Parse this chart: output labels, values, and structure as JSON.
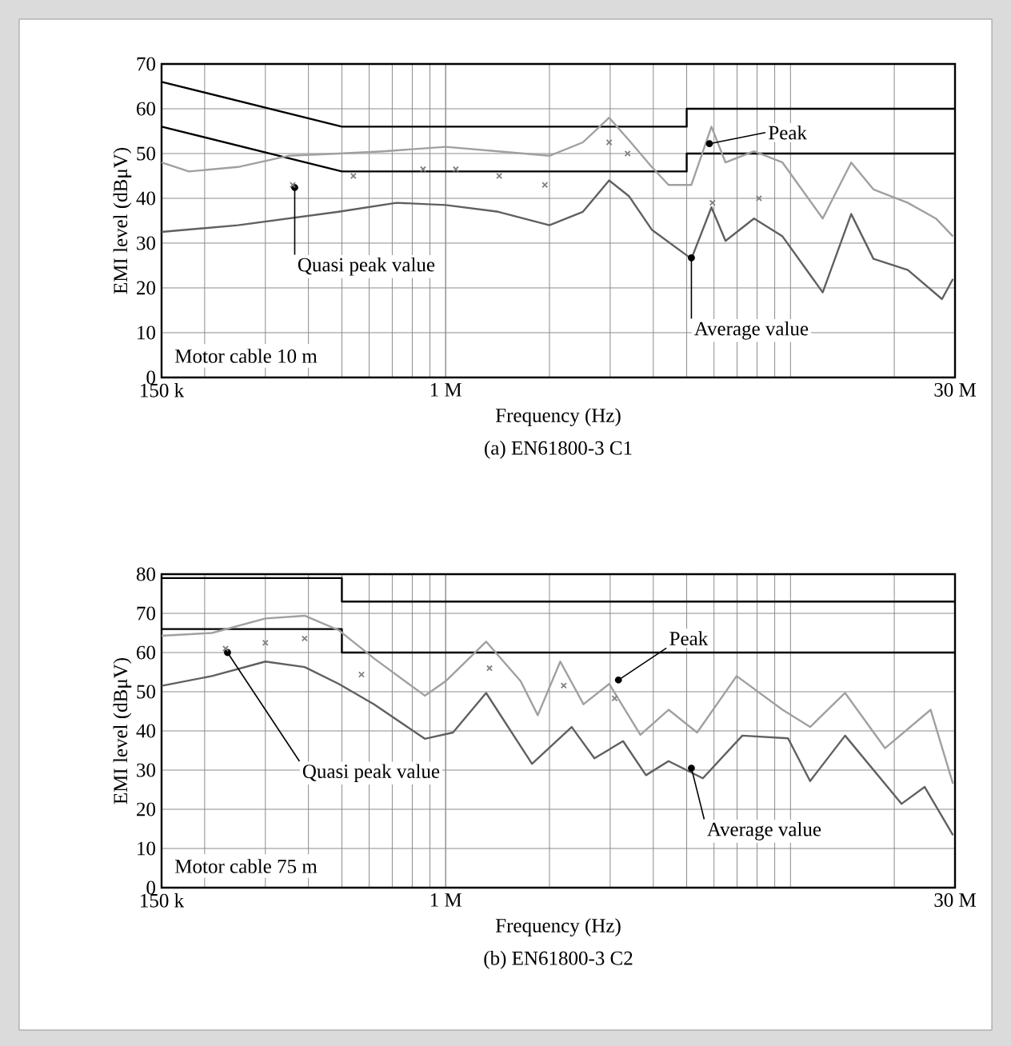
{
  "chart_data": [
    {
      "type": "line",
      "title": "(a) EN61800-3 C1",
      "xlabel": "Frequency (Hz)",
      "ylabel": "EMI level (dBμV)",
      "log": "x",
      "grid": true,
      "xlim": [
        0.15,
        30
      ],
      "ylim": [
        0,
        70
      ],
      "xticks": [
        {
          "value": 0.15,
          "label": "150 k"
        },
        {
          "value": 1,
          "label": "1 M"
        },
        {
          "value": 30,
          "label": "30 M"
        }
      ],
      "yticks": [
        0,
        10,
        20,
        30,
        40,
        50,
        60,
        70
      ],
      "series": [
        {
          "color": "#000000",
          "x": [
            0.15,
            0.5,
            5,
            5,
            30
          ],
          "values": [
            66,
            56,
            56,
            60,
            60
          ]
        },
        {
          "color": "#000000",
          "x": [
            0.15,
            0.5,
            5,
            5,
            30
          ],
          "values": [
            56,
            46,
            46,
            50,
            50
          ]
        },
        {
          "color": "#a0a0a0",
          "x": [
            0.15,
            0.18,
            0.25,
            0.35,
            0.49,
            0.66,
            1,
            1.42,
            2,
            2.5,
            2.98,
            3.4,
            3.96,
            4.43,
            5.16,
            5.9,
            6.48,
            7.84,
            9.48,
            12.4,
            15,
            17.4,
            21.9,
            26.4,
            29.6
          ],
          "values": [
            48,
            46,
            47,
            49.5,
            50,
            50.5,
            51.5,
            50.5,
            49.5,
            52.5,
            58,
            53,
            47,
            43,
            43,
            56,
            48,
            50.5,
            48,
            35.5,
            48,
            42,
            39,
            35.5,
            31.5
          ]
        },
        {
          "color": "#606060",
          "x": [
            0.15,
            0.25,
            0.49,
            0.72,
            1,
            1.42,
            2,
            2.5,
            2.98,
            3.4,
            3.96,
            5.16,
            5.9,
            6.48,
            7.84,
            9.48,
            12.4,
            15,
            17.4,
            21.9,
            27.5,
            29.6
          ],
          "values": [
            32.5,
            34,
            37,
            39,
            38.5,
            37,
            34,
            37,
            44,
            40.5,
            33,
            26.5,
            38,
            30.5,
            35.5,
            31.5,
            19,
            36.5,
            26.5,
            24,
            17.5,
            22
          ]
        },
        {
          "type": "scatter",
          "marker": "cross",
          "color": "#808080",
          "x": [
            0.36,
            0.54,
            0.86,
            1.07,
            1.43,
            1.94,
            2.98,
            3.37,
            5.94,
            8.1
          ],
          "values": [
            43,
            45,
            46.5,
            46.5,
            45,
            43,
            52.5,
            50,
            39,
            40
          ]
        }
      ],
      "annotations": [
        "Motor cable 10 m",
        {
          "text": "Quasi peak value",
          "x": 0.365,
          "y": 42.4
        },
        {
          "text": "Peak",
          "x": 5.82,
          "y": 52.2
        },
        {
          "text": "Average value",
          "x": 5.16,
          "y": 26.7
        }
      ]
    },
    {
      "type": "line",
      "title": "(b) EN61800-3 C2",
      "xlabel": "Frequency (Hz)",
      "ylabel": "EMI level (dBμV)",
      "log": "x",
      "grid": true,
      "xlim": [
        0.15,
        30
      ],
      "ylim": [
        0,
        80
      ],
      "xticks": [
        {
          "value": 0.15,
          "label": "150 k"
        },
        {
          "value": 1,
          "label": "1 M"
        },
        {
          "value": 30,
          "label": "30 M"
        }
      ],
      "yticks": [
        0,
        10,
        20,
        30,
        40,
        50,
        60,
        70,
        80
      ],
      "series": [
        {
          "color": "#000000",
          "x": [
            0.15,
            0.5,
            0.5,
            30
          ],
          "values": [
            79,
            79,
            73,
            73
          ]
        },
        {
          "color": "#000000",
          "x": [
            0.15,
            0.5,
            0.5,
            30
          ],
          "values": [
            66,
            66,
            60,
            60
          ]
        },
        {
          "color": "#a0a0a0",
          "x": [
            0.15,
            0.21,
            0.3,
            0.39,
            0.49,
            0.62,
            0.87,
            1,
            1.31,
            1.65,
            1.85,
            2.15,
            2.51,
            2.98,
            3.67,
            4.43,
            5.36,
            6.98,
            9.48,
            11.4,
            14.4,
            18.8,
            25.5,
            29.6
          ],
          "values": [
            64.3,
            65,
            68.7,
            69.4,
            65.7,
            58.5,
            49,
            52.7,
            62.8,
            52.7,
            44,
            57.7,
            46.8,
            52,
            39,
            45.4,
            39.6,
            54,
            45.4,
            41,
            49.7,
            35.6,
            45.4,
            26.5
          ]
        },
        {
          "color": "#606060",
          "x": [
            0.15,
            0.21,
            0.3,
            0.39,
            0.49,
            0.62,
            0.87,
            1.05,
            1.31,
            1.78,
            2.32,
            2.7,
            3.27,
            3.81,
            4.43,
            5.57,
            7.25,
            9.84,
            11.4,
            14.4,
            21,
            24.5,
            29.6
          ],
          "values": [
            51.5,
            54,
            57.7,
            56.3,
            52,
            46.8,
            38,
            39.6,
            49.7,
            31.6,
            41,
            33,
            37.4,
            28.7,
            32.3,
            27.9,
            38.8,
            38.1,
            27.2,
            38.8,
            21.4,
            25.7,
            13.4
          ]
        },
        {
          "type": "scatter",
          "marker": "cross",
          "color": "#808080",
          "x": [
            0.23,
            0.3,
            0.39,
            0.57,
            1.34,
            2.2,
            3.09
          ],
          "values": [
            61,
            62.5,
            63.6,
            54.4,
            56,
            51.6,
            48.3
          ]
        }
      ],
      "annotations": [
        "Motor cable 75 m",
        {
          "text": "Quasi peak value",
          "x": 0.233,
          "y": 60
        },
        {
          "text": "Peak",
          "x": 3.17,
          "y": 53
        },
        {
          "text": "Average value",
          "x": 5.16,
          "y": 30.5
        }
      ]
    }
  ]
}
